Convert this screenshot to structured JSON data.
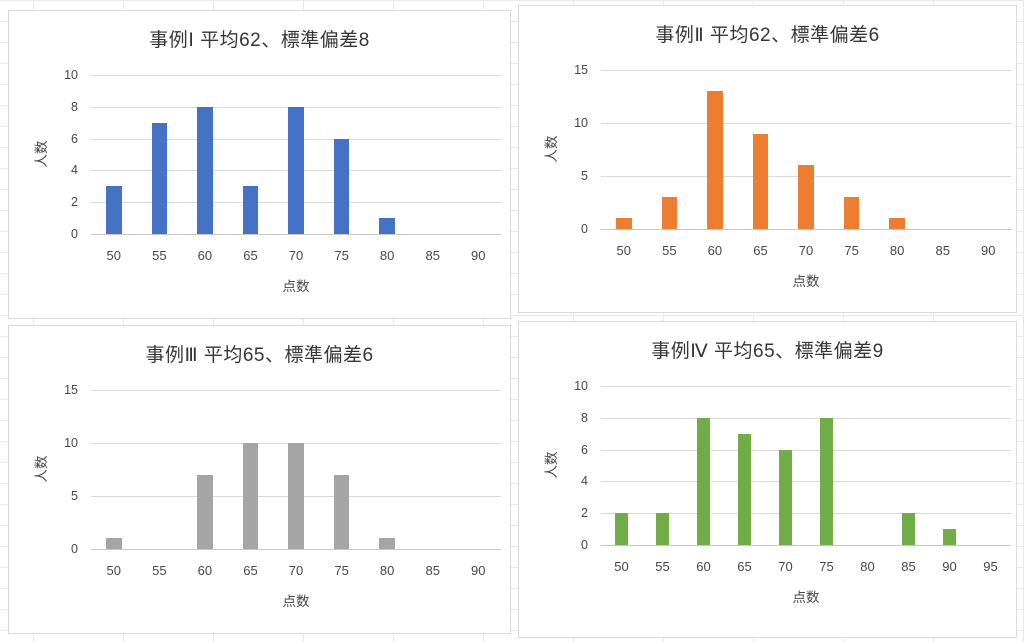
{
  "chart_data": [
    {
      "type": "bar",
      "title": "事例Ⅰ 平均62、標準偏差8",
      "xlabel": "点数",
      "ylabel": "人数",
      "categories": [
        "50",
        "55",
        "60",
        "65",
        "70",
        "75",
        "80",
        "85",
        "90"
      ],
      "values": [
        3,
        7,
        8,
        3,
        8,
        6,
        1,
        0,
        0
      ],
      "ylim": [
        0,
        10
      ],
      "yticks": [
        0,
        2,
        4,
        6,
        8,
        10
      ],
      "color": "#4472C4",
      "grid": "horizontal",
      "legend": "none"
    },
    {
      "type": "bar",
      "title": "事例Ⅱ 平均62、標準偏差6",
      "xlabel": "点数",
      "ylabel": "人数",
      "categories": [
        "50",
        "55",
        "60",
        "65",
        "70",
        "75",
        "80",
        "85",
        "90"
      ],
      "values": [
        1,
        3,
        13,
        9,
        6,
        3,
        1,
        0,
        0
      ],
      "ylim": [
        0,
        15
      ],
      "yticks": [
        0,
        5,
        10,
        15
      ],
      "color": "#ED7D31",
      "grid": "horizontal",
      "legend": "none"
    },
    {
      "type": "bar",
      "title": "事例Ⅲ 平均65、標準偏差6",
      "xlabel": "点数",
      "ylabel": "人数",
      "categories": [
        "50",
        "55",
        "60",
        "65",
        "70",
        "75",
        "80",
        "85",
        "90"
      ],
      "values": [
        1,
        0,
        7,
        10,
        10,
        7,
        1,
        0,
        0
      ],
      "ylim": [
        0,
        15
      ],
      "yticks": [
        0,
        5,
        10,
        15
      ],
      "color": "#A5A5A5",
      "grid": "horizontal",
      "legend": "none"
    },
    {
      "type": "bar",
      "title": "事例Ⅳ 平均65、標準偏差9",
      "xlabel": "点数",
      "ylabel": "人数",
      "categories": [
        "50",
        "55",
        "60",
        "65",
        "70",
        "75",
        "80",
        "85",
        "90",
        "95"
      ],
      "values": [
        2,
        2,
        8,
        7,
        6,
        8,
        0,
        2,
        1,
        0
      ],
      "ylim": [
        0,
        10
      ],
      "yticks": [
        0,
        2,
        4,
        6,
        8,
        10
      ],
      "color": "#70AD47",
      "grid": "horizontal",
      "legend": "none"
    }
  ]
}
